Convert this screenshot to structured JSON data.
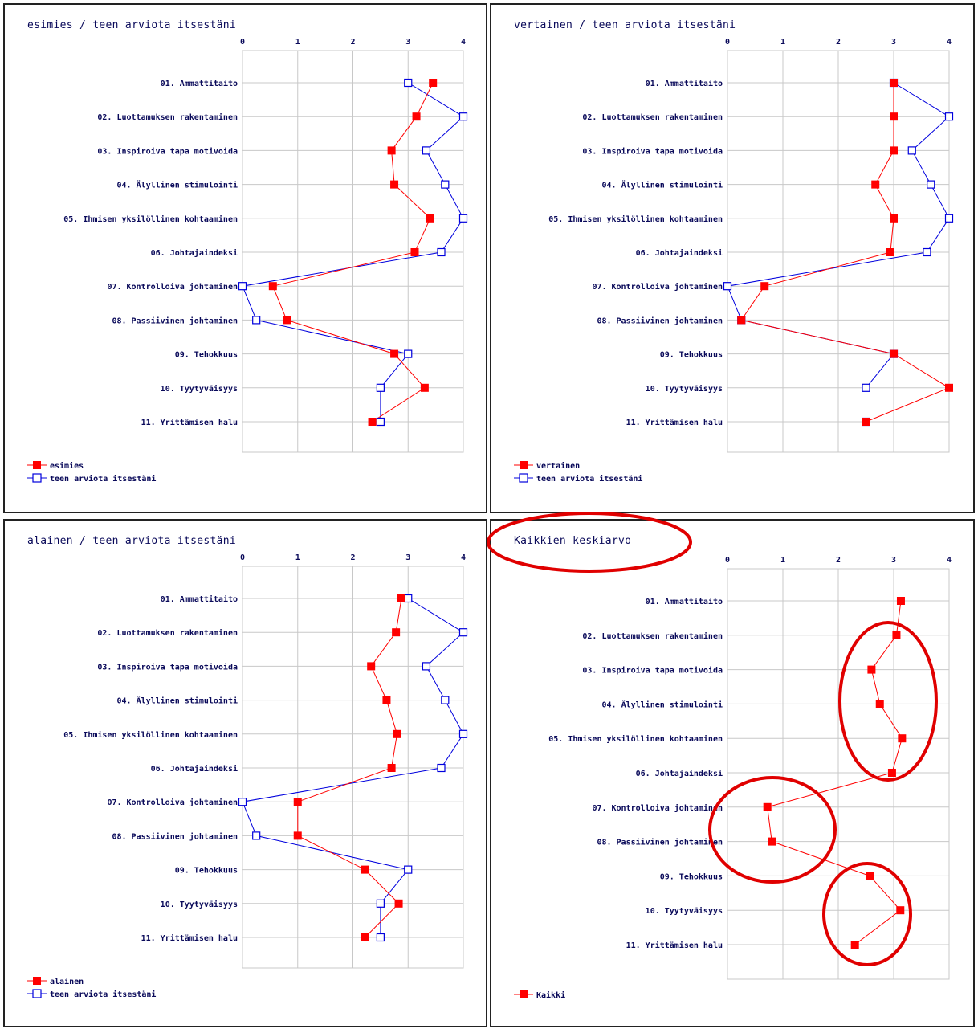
{
  "colors": {
    "red": "#ff0000",
    "blue": "#0000dd",
    "grid": "#c8c8c8",
    "text": "#0a0a5a",
    "annotation": "#e00000"
  },
  "chart_data": [
    {
      "type": "line",
      "orientation": "horizontal",
      "title": "esimies / teen arviota itsestäni",
      "xlim": [
        0,
        4
      ],
      "xticks": [
        "0",
        "1",
        "2",
        "3",
        "4"
      ],
      "categories": [
        "01. Ammattitaito",
        "02. Luottamuksen rakentaminen",
        "03. Inspiroiva tapa motivoida",
        "04. Älyllinen stimulointi",
        "05. Ihmisen yksilöllinen kohtaaminen",
        "06. Johtajaindeksi",
        "07. Kontrolloiva johtaminen",
        "08. Passiivinen johtaminen",
        "09. Tehokkuus",
        "10. Tyytyväisyys",
        "11. Yrittämisen halu"
      ],
      "legend": "bottom-left",
      "series": [
        {
          "name": "esimies",
          "color": "#ff0000",
          "marker": "filled-square",
          "values": [
            3.45,
            3.15,
            2.7,
            2.75,
            3.4,
            3.12,
            0.55,
            0.8,
            2.75,
            3.3,
            2.35
          ]
        },
        {
          "name": "teen arviota itsestäni",
          "color": "#0000dd",
          "marker": "open-square",
          "values": [
            3.0,
            4.0,
            3.33,
            3.67,
            4.0,
            3.6,
            0.0,
            0.25,
            3.0,
            2.5,
            2.5
          ]
        }
      ]
    },
    {
      "type": "line",
      "orientation": "horizontal",
      "title": "vertainen / teen arviota itsestäni",
      "xlim": [
        0,
        4
      ],
      "xticks": [
        "0",
        "1",
        "2",
        "3",
        "4"
      ],
      "categories": [
        "01. Ammattitaito",
        "02. Luottamuksen rakentaminen",
        "03. Inspiroiva tapa motivoida",
        "04. Älyllinen stimulointi",
        "05. Ihmisen yksilöllinen kohtaaminen",
        "06. Johtajaindeksi",
        "07. Kontrolloiva johtaminen",
        "08. Passiivinen johtaminen",
        "09. Tehokkuus",
        "10. Tyytyväisyys",
        "11. Yrittämisen halu"
      ],
      "legend": "bottom-left",
      "series": [
        {
          "name": "vertainen",
          "color": "#ff0000",
          "marker": "filled-square",
          "values": [
            3.0,
            3.0,
            3.0,
            2.67,
            3.0,
            2.94,
            0.67,
            0.25,
            3.0,
            4.0,
            2.5
          ]
        },
        {
          "name": "teen arviota itsestäni",
          "color": "#0000dd",
          "marker": "open-square",
          "values": [
            3.0,
            4.0,
            3.33,
            3.67,
            4.0,
            3.6,
            0.0,
            0.25,
            3.0,
            2.5,
            2.5
          ]
        }
      ]
    },
    {
      "type": "line",
      "orientation": "horizontal",
      "title": "alainen / teen arviota itsestäni",
      "xlim": [
        0,
        4
      ],
      "xticks": [
        "0",
        "1",
        "2",
        "3",
        "4"
      ],
      "categories": [
        "01. Ammattitaito",
        "02. Luottamuksen rakentaminen",
        "03. Inspiroiva tapa motivoida",
        "04. Älyllinen stimulointi",
        "05. Ihmisen yksilöllinen kohtaaminen",
        "06. Johtajaindeksi",
        "07. Kontrolloiva johtaminen",
        "08. Passiivinen johtaminen",
        "09. Tehokkuus",
        "10. Tyytyväisyys",
        "11. Yrittämisen halu"
      ],
      "legend": "bottom-left",
      "series": [
        {
          "name": "alainen",
          "color": "#ff0000",
          "marker": "filled-square",
          "values": [
            2.88,
            2.78,
            2.33,
            2.61,
            2.8,
            2.7,
            1.0,
            1.0,
            2.22,
            2.83,
            2.22
          ]
        },
        {
          "name": "teen arviota itsestäni",
          "color": "#0000dd",
          "marker": "open-square",
          "values": [
            3.0,
            4.0,
            3.33,
            3.67,
            4.0,
            3.6,
            0.0,
            0.25,
            3.0,
            2.5,
            2.5
          ]
        }
      ]
    },
    {
      "type": "line",
      "orientation": "horizontal",
      "title": "Kaikkien keskiarvo",
      "xlim": [
        0,
        4
      ],
      "xticks": [
        "0",
        "1",
        "2",
        "3",
        "4"
      ],
      "categories": [
        "01. Ammattitaito",
        "02. Luottamuksen rakentaminen",
        "03. Inspiroiva tapa motivoida",
        "04. Älyllinen stimulointi",
        "05. Ihmisen yksilöllinen kohtaaminen",
        "06. Johtajaindeksi",
        "07. Kontrolloiva johtaminen",
        "08. Passiivinen johtaminen",
        "09. Tehokkuus",
        "10. Tyytyväisyys",
        "11. Yrittämisen halu"
      ],
      "legend": "bottom-left",
      "series": [
        {
          "name": "Kaikki",
          "color": "#ff0000",
          "marker": "filled-square",
          "values": [
            3.13,
            3.05,
            2.6,
            2.75,
            3.15,
            2.97,
            0.72,
            0.8,
            2.57,
            3.12,
            2.3
          ]
        }
      ]
    }
  ]
}
